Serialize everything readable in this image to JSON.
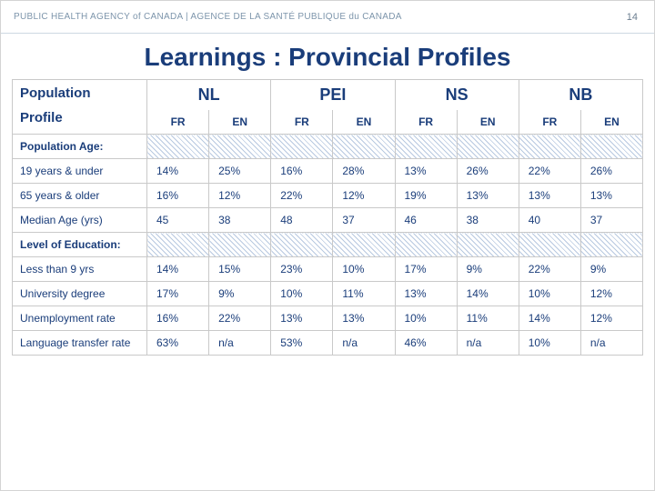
{
  "header": {
    "agency": "PUBLIC HEALTH AGENCY of CANADA  |  AGENCE DE LA SANTÉ PUBLIQUE du CANADA",
    "page": "14"
  },
  "title": "Learnings : Provincial Profiles",
  "table": {
    "type": "table",
    "corner_label_a": "Population",
    "corner_label_b": "Profile",
    "provinces": [
      "NL",
      "PEI",
      "NS",
      "NB"
    ],
    "subheads": [
      "FR",
      "EN",
      "FR",
      "EN",
      "FR",
      "EN",
      "FR",
      "EN"
    ],
    "sections": [
      {
        "label": "Population Age:",
        "kind": "section"
      },
      {
        "label": "19 years & under",
        "kind": "data",
        "vals": [
          "14%",
          "25%",
          "16%",
          "28%",
          "13%",
          "26%",
          "22%",
          "26%"
        ]
      },
      {
        "label": "65 years & older",
        "kind": "data",
        "vals": [
          "16%",
          "12%",
          "22%",
          "12%",
          "19%",
          "13%",
          "13%",
          "13%"
        ]
      },
      {
        "label": "Median Age (yrs)",
        "kind": "data",
        "vals": [
          "45",
          "38",
          "48",
          "37",
          "46",
          "38",
          "40",
          "37"
        ]
      },
      {
        "label": "Level of Education:",
        "kind": "section"
      },
      {
        "label": "Less than 9 yrs",
        "kind": "data",
        "vals": [
          "14%",
          "15%",
          "23%",
          "10%",
          "17%",
          "9%",
          "22%",
          "9%"
        ]
      },
      {
        "label": "University degree",
        "kind": "data",
        "vals": [
          "17%",
          "9%",
          "10%",
          "11%",
          "13%",
          "14%",
          "10%",
          "12%"
        ]
      },
      {
        "label": "Unemployment rate",
        "kind": "data",
        "vals": [
          "16%",
          "22%",
          "13%",
          "13%",
          "10%",
          "11%",
          "14%",
          "12%"
        ]
      },
      {
        "label": "Language transfer rate",
        "kind": "data",
        "vals": [
          "63%",
          "n/a",
          "53%",
          "n/a",
          "46%",
          "n/a",
          "10%",
          "n/a"
        ]
      }
    ],
    "colors": {
      "heading": "#1a3d7a",
      "border": "#c9c9c9",
      "hatch_fg": "#b8c9e0",
      "hatch_bg": "#ffffff",
      "top_bar_text": "#7d95ab"
    }
  }
}
